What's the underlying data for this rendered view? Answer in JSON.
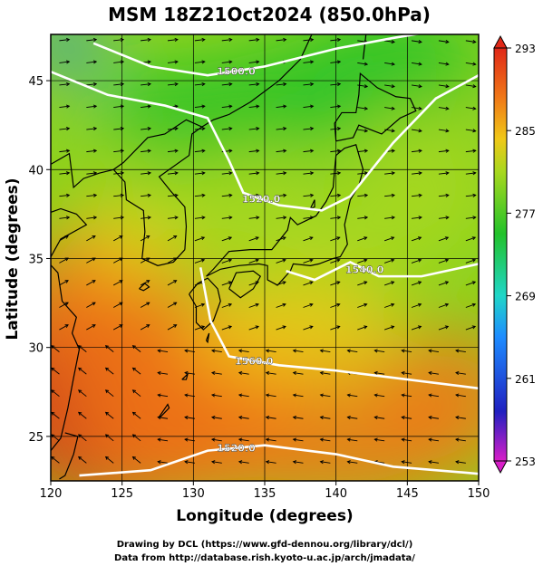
{
  "chart_data": {
    "type": "heatmap",
    "title": "MSM 18Z21Oct2024 (850.0hPa)",
    "xlabel": "Longitude (degrees)",
    "ylabel": "Latitude  (degrees)",
    "xlim": [
      120,
      150
    ],
    "ylim": [
      22.5,
      47.6
    ],
    "x_ticks": [
      120,
      125,
      130,
      135,
      140,
      145,
      150
    ],
    "y_ticks": [
      25,
      30,
      35,
      40,
      45
    ],
    "grid": true,
    "colorbar": {
      "range": [
        253,
        293
      ],
      "ticks": [
        293,
        285,
        277,
        269,
        261,
        253
      ],
      "colors": [
        "#d81ec8",
        "#2020c0",
        "#1e8cff",
        "#20d6c8",
        "#22c22a",
        "#a8d81e",
        "#f0c818",
        "#f07818",
        "#e02818"
      ]
    },
    "contours": [
      {
        "label": "1500.0",
        "points": [
          [
            123,
            47.1
          ],
          [
            127,
            45.8
          ],
          [
            131,
            45.3
          ],
          [
            135,
            45.8
          ],
          [
            140,
            46.8
          ],
          [
            144,
            47.4
          ],
          [
            150,
            48.2
          ]
        ]
      },
      {
        "label": "1520.0",
        "points": [
          [
            120,
            45.5
          ],
          [
            124,
            44.2
          ],
          [
            128,
            43.6
          ],
          [
            131,
            42.9
          ],
          [
            132.5,
            40.5
          ],
          [
            133.5,
            38.7
          ],
          [
            136,
            38
          ],
          [
            139,
            37.7
          ],
          [
            141,
            38.5
          ],
          [
            144,
            41.5
          ],
          [
            147,
            44
          ],
          [
            150,
            45.3
          ]
        ]
      },
      {
        "label": "1540.0",
        "points": [
          [
            136.5,
            34.3
          ],
          [
            138.5,
            33.8
          ],
          [
            141,
            34.8
          ],
          [
            143,
            34
          ],
          [
            146,
            34
          ],
          [
            150,
            34.7
          ]
        ]
      },
      {
        "label": "1560.0",
        "points": [
          [
            130.5,
            34.5
          ],
          [
            131.2,
            31.5
          ],
          [
            132.5,
            29.5
          ],
          [
            136,
            29
          ],
          [
            140,
            28.7
          ],
          [
            144,
            28.3
          ],
          [
            150,
            27.7
          ]
        ]
      },
      {
        "label": "1520.0",
        "points": [
          [
            122,
            22.8
          ],
          [
            127,
            23.1
          ],
          [
            131,
            24.2
          ],
          [
            135,
            24.5
          ],
          [
            140,
            24
          ],
          [
            144,
            23.3
          ],
          [
            150,
            22.9
          ]
        ]
      }
    ],
    "coastlines": [
      {
        "name": "honshu",
        "points": [
          [
            130.9,
            34.0
          ],
          [
            131.9,
            34.4
          ],
          [
            133.2,
            34.6
          ],
          [
            134.6,
            34.7
          ],
          [
            135.2,
            34.6
          ],
          [
            135.2,
            33.8
          ],
          [
            135.9,
            33.5
          ],
          [
            136.8,
            34.3
          ],
          [
            137.0,
            34.7
          ],
          [
            138.2,
            34.6
          ],
          [
            138.8,
            34.7
          ],
          [
            139.8,
            35.0
          ],
          [
            140.3,
            35.1
          ],
          [
            140.8,
            35.8
          ],
          [
            140.6,
            36.9
          ],
          [
            141.0,
            38.3
          ],
          [
            141.6,
            39.1
          ],
          [
            141.9,
            40.0
          ],
          [
            141.4,
            41.4
          ],
          [
            140.6,
            41.2
          ],
          [
            140.0,
            40.8
          ],
          [
            139.9,
            40.0
          ],
          [
            139.8,
            39.0
          ],
          [
            139.3,
            38.2
          ],
          [
            138.6,
            37.4
          ],
          [
            137.3,
            36.9
          ],
          [
            136.8,
            37.3
          ],
          [
            136.6,
            36.6
          ],
          [
            135.5,
            35.5
          ],
          [
            134.0,
            35.5
          ],
          [
            132.5,
            35.4
          ],
          [
            131.4,
            34.4
          ],
          [
            130.9,
            34.0
          ]
        ]
      },
      {
        "name": "hokkaido",
        "points": [
          [
            140.0,
            41.6
          ],
          [
            141.2,
            41.8
          ],
          [
            141.6,
            42.5
          ],
          [
            143.2,
            42.0
          ],
          [
            144.5,
            42.9
          ],
          [
            145.6,
            43.3
          ],
          [
            145.2,
            44.0
          ],
          [
            144.2,
            44.1
          ],
          [
            142.9,
            44.6
          ],
          [
            141.7,
            45.4
          ],
          [
            141.6,
            44.2
          ],
          [
            141.4,
            43.2
          ],
          [
            140.4,
            43.2
          ],
          [
            139.9,
            42.6
          ],
          [
            140.0,
            41.6
          ]
        ]
      },
      {
        "name": "kyushu",
        "points": [
          [
            129.7,
            33.0
          ],
          [
            130.3,
            33.6
          ],
          [
            131.0,
            33.9
          ],
          [
            131.7,
            33.3
          ],
          [
            131.9,
            32.6
          ],
          [
            131.4,
            31.5
          ],
          [
            130.7,
            31.0
          ],
          [
            130.2,
            31.4
          ],
          [
            130.2,
            32.3
          ],
          [
            129.7,
            33.0
          ]
        ]
      },
      {
        "name": "shikoku",
        "points": [
          [
            132.5,
            33.3
          ],
          [
            133.0,
            34.2
          ],
          [
            134.2,
            34.3
          ],
          [
            134.7,
            34.0
          ],
          [
            134.2,
            33.3
          ],
          [
            133.3,
            32.8
          ],
          [
            132.5,
            33.3
          ]
        ]
      },
      {
        "name": "korea",
        "points": [
          [
            129.4,
            35.5
          ],
          [
            129.5,
            36.8
          ],
          [
            129.4,
            37.9
          ],
          [
            128.4,
            38.8
          ],
          [
            127.6,
            39.6
          ],
          [
            128.3,
            40.0
          ],
          [
            129.7,
            40.8
          ],
          [
            129.9,
            42.0
          ],
          [
            130.6,
            42.4
          ],
          [
            129.5,
            42.8
          ],
          [
            128.0,
            42.0
          ],
          [
            126.8,
            41.8
          ],
          [
            125.1,
            40.4
          ],
          [
            124.4,
            40.0
          ],
          [
            125.2,
            39.3
          ],
          [
            125.3,
            38.3
          ],
          [
            126.5,
            37.7
          ],
          [
            126.6,
            36.5
          ],
          [
            126.4,
            35.0
          ],
          [
            127.5,
            34.6
          ],
          [
            128.6,
            34.8
          ],
          [
            129.4,
            35.5
          ]
        ]
      },
      {
        "name": "china",
        "points": [
          [
            120.0,
            24.2
          ],
          [
            120.7,
            24.9
          ],
          [
            121.2,
            26.6
          ],
          [
            121.6,
            28.3
          ],
          [
            122.0,
            29.9
          ],
          [
            121.5,
            30.8
          ],
          [
            121.8,
            31.7
          ],
          [
            120.8,
            32.6
          ],
          [
            120.5,
            34.2
          ],
          [
            119.8,
            34.8
          ],
          [
            120.7,
            36.1
          ],
          [
            122.5,
            36.9
          ],
          [
            121.8,
            37.5
          ],
          [
            120.7,
            37.8
          ],
          [
            120.0,
            37.6
          ]
        ]
      },
      {
        "name": "liaodong",
        "points": [
          [
            120.0,
            40.3
          ],
          [
            121.3,
            40.9
          ],
          [
            121.6,
            39.0
          ],
          [
            122.3,
            39.5
          ],
          [
            123.4,
            39.8
          ],
          [
            124.4,
            40.0
          ]
        ]
      },
      {
        "name": "taiwan",
        "points": [
          [
            121.0,
            25.2
          ],
          [
            121.9,
            25.0
          ],
          [
            121.6,
            24.0
          ],
          [
            121.0,
            22.8
          ],
          [
            120.6,
            22.6
          ]
        ]
      },
      {
        "name": "primorye",
        "points": [
          [
            130.6,
            42.4
          ],
          [
            131.4,
            42.8
          ],
          [
            132.5,
            43.1
          ],
          [
            134.0,
            43.8
          ],
          [
            136.0,
            45.0
          ],
          [
            137.5,
            46.2
          ],
          [
            138.3,
            47.6
          ]
        ]
      },
      {
        "name": "sakhalin",
        "points": [
          [
            141.9,
            46.2
          ],
          [
            142.1,
            47.6
          ]
        ]
      },
      {
        "name": "jeju",
        "points": [
          [
            126.2,
            33.3
          ],
          [
            126.6,
            33.6
          ],
          [
            126.9,
            33.4
          ],
          [
            126.5,
            33.2
          ],
          [
            126.2,
            33.3
          ]
        ]
      },
      {
        "name": "sado",
        "points": [
          [
            138.2,
            37.8
          ],
          [
            138.5,
            38.3
          ],
          [
            138.5,
            37.9
          ],
          [
            138.2,
            37.8
          ]
        ]
      },
      {
        "name": "tanegashima",
        "points": [
          [
            130.9,
            30.4
          ],
          [
            131.1,
            30.8
          ],
          [
            131.0,
            30.3
          ],
          [
            130.9,
            30.4
          ]
        ]
      },
      {
        "name": "amami",
        "points": [
          [
            129.2,
            28.2
          ],
          [
            129.6,
            28.5
          ],
          [
            129.5,
            28.2
          ],
          [
            129.2,
            28.2
          ]
        ]
      },
      {
        "name": "okinawa",
        "points": [
          [
            127.6,
            26.1
          ],
          [
            128.2,
            26.8
          ],
          [
            128.3,
            26.6
          ],
          [
            127.7,
            26.1
          ],
          [
            127.6,
            26.1
          ]
        ]
      }
    ],
    "credits": [
      "Drawing by DCL (https://www.gfd-dennou.org/library/dcl/)",
      "Data from http://database.rish.kyoto-u.ac.jp/arch/jmadata/"
    ]
  }
}
